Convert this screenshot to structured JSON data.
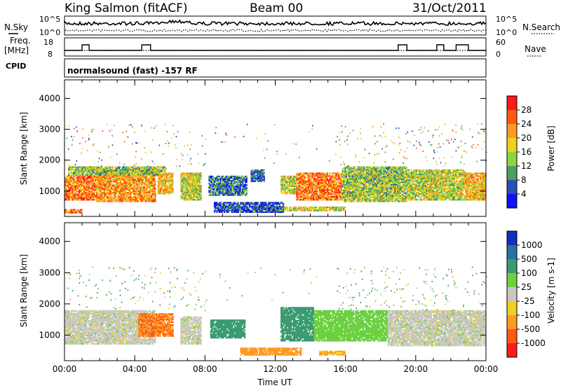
{
  "header": {
    "station": "King Salmon (fitACF)",
    "beam": "Beam 00",
    "date": "31/Oct/2011",
    "mode": "normalsound (fast) -157 RF"
  },
  "top_panels": {
    "noise_left": "N.Sky",
    "noise_right": "N.Search",
    "noise_ticks": [
      "10^5",
      "10^0"
    ],
    "noise_ticks_right": [
      "10^5",
      "10^0"
    ],
    "freq_label_1": "Freq.",
    "freq_label_2": "[MHz]",
    "freq_ticks": [
      "18",
      "8"
    ],
    "nave_ticks": [
      "60",
      "0"
    ],
    "nave_label": "Nave",
    "cpid_label": "CPID"
  },
  "chart_data": [
    {
      "type": "heatmap",
      "name": "power",
      "ylabel": "Slant Range [km]",
      "xlabel": "",
      "ylim": [
        180,
        4600
      ],
      "yticks": [
        "4000",
        "3000",
        "2000",
        "1000"
      ],
      "ytick_values": [
        4000,
        3000,
        2000,
        1000
      ],
      "colorbar_label": "Power [dB]",
      "colorbar_ticks": [
        "28",
        "24",
        "20",
        "16",
        "12",
        "8",
        "4"
      ],
      "colorbar_colors": [
        "#ff1a1a",
        "#ff5a10",
        "#ff9a20",
        "#f0d020",
        "#8ed640",
        "#4aa060",
        "#2a50b0",
        "#1010ff"
      ],
      "regions": [
        {
          "t0": 0.0,
          "t1": 1.8,
          "r0": 700,
          "r1": 1500,
          "level": 24
        },
        {
          "t0": 1.8,
          "t1": 5.2,
          "r0": 650,
          "r1": 1700,
          "level": 22
        },
        {
          "t0": 0.2,
          "t1": 5.8,
          "r0": 1500,
          "r1": 1800,
          "level": 14
        },
        {
          "t0": 5.3,
          "t1": 6.2,
          "r0": 900,
          "r1": 1600,
          "level": 20
        },
        {
          "t0": 6.6,
          "t1": 7.8,
          "r0": 700,
          "r1": 1600,
          "level": 16
        },
        {
          "t0": 8.2,
          "t1": 10.4,
          "r0": 850,
          "r1": 1500,
          "level": 8
        },
        {
          "t0": 10.6,
          "t1": 11.4,
          "r0": 1300,
          "r1": 1700,
          "level": 6
        },
        {
          "t0": 12.3,
          "t1": 13.2,
          "r0": 900,
          "r1": 1500,
          "level": 16
        },
        {
          "t0": 13.2,
          "t1": 15.8,
          "r0": 700,
          "r1": 1600,
          "level": 24
        },
        {
          "t0": 15.8,
          "t1": 19.5,
          "r0": 650,
          "r1": 1800,
          "level": 14
        },
        {
          "t0": 19.5,
          "t1": 22.8,
          "r0": 700,
          "r1": 1700,
          "level": 16
        },
        {
          "t0": 22.8,
          "t1": 24.0,
          "r0": 700,
          "r1": 1600,
          "level": 20
        },
        {
          "t0": 8.5,
          "t1": 12.5,
          "r0": 300,
          "r1": 650,
          "level": 6
        },
        {
          "t0": 12.5,
          "t1": 16.0,
          "r0": 350,
          "r1": 500,
          "level": 16
        },
        {
          "t0": 0.0,
          "t1": 1.0,
          "r0": 280,
          "r1": 420,
          "level": 24
        }
      ]
    },
    {
      "type": "heatmap",
      "name": "velocity",
      "ylabel": "Slant Range [km]",
      "xlabel": "Time UT",
      "ylim": [
        180,
        4600
      ],
      "yticks": [
        "4000",
        "3000",
        "2000",
        "1000"
      ],
      "ytick_values": [
        4000,
        3000,
        2000,
        1000
      ],
      "xticks": [
        "00:00",
        "04:00",
        "08:00",
        "12:00",
        "16:00",
        "20:00",
        "00:00"
      ],
      "xtick_values": [
        0,
        4,
        8,
        12,
        16,
        20,
        24
      ],
      "colorbar_label": "Velocity [m s-1]",
      "colorbar_ticks": [
        "1000",
        "500",
        "100",
        "25",
        "-25",
        "-100",
        "-500",
        "-1000"
      ],
      "colorbar_colors": [
        "#1030c0",
        "#2a70a0",
        "#3a9a70",
        "#6cd040",
        "#c8c8c0",
        "#f0d020",
        "#ff9a20",
        "#ff5a10",
        "#ff1a1a"
      ],
      "regions": [
        {
          "t0": 0.0,
          "t1": 5.2,
          "r0": 700,
          "r1": 1800,
          "level": 0
        },
        {
          "t0": 4.2,
          "t1": 6.2,
          "r0": 950,
          "r1": 1700,
          "level": -500
        },
        {
          "t0": 6.6,
          "t1": 7.8,
          "r0": 700,
          "r1": 1600,
          "level": 0
        },
        {
          "t0": 8.3,
          "t1": 10.3,
          "r0": 900,
          "r1": 1500,
          "level": 300
        },
        {
          "t0": 12.3,
          "t1": 14.2,
          "r0": 800,
          "r1": 1900,
          "level": 300
        },
        {
          "t0": 14.2,
          "t1": 18.4,
          "r0": 800,
          "r1": 1800,
          "level": 60
        },
        {
          "t0": 18.4,
          "t1": 24.0,
          "r0": 650,
          "r1": 1800,
          "level": 0
        },
        {
          "t0": 10.0,
          "t1": 13.5,
          "r0": 350,
          "r1": 600,
          "level": -200
        },
        {
          "t0": 14.5,
          "t1": 16.0,
          "r0": 350,
          "r1": 500,
          "level": -100
        }
      ]
    }
  ]
}
